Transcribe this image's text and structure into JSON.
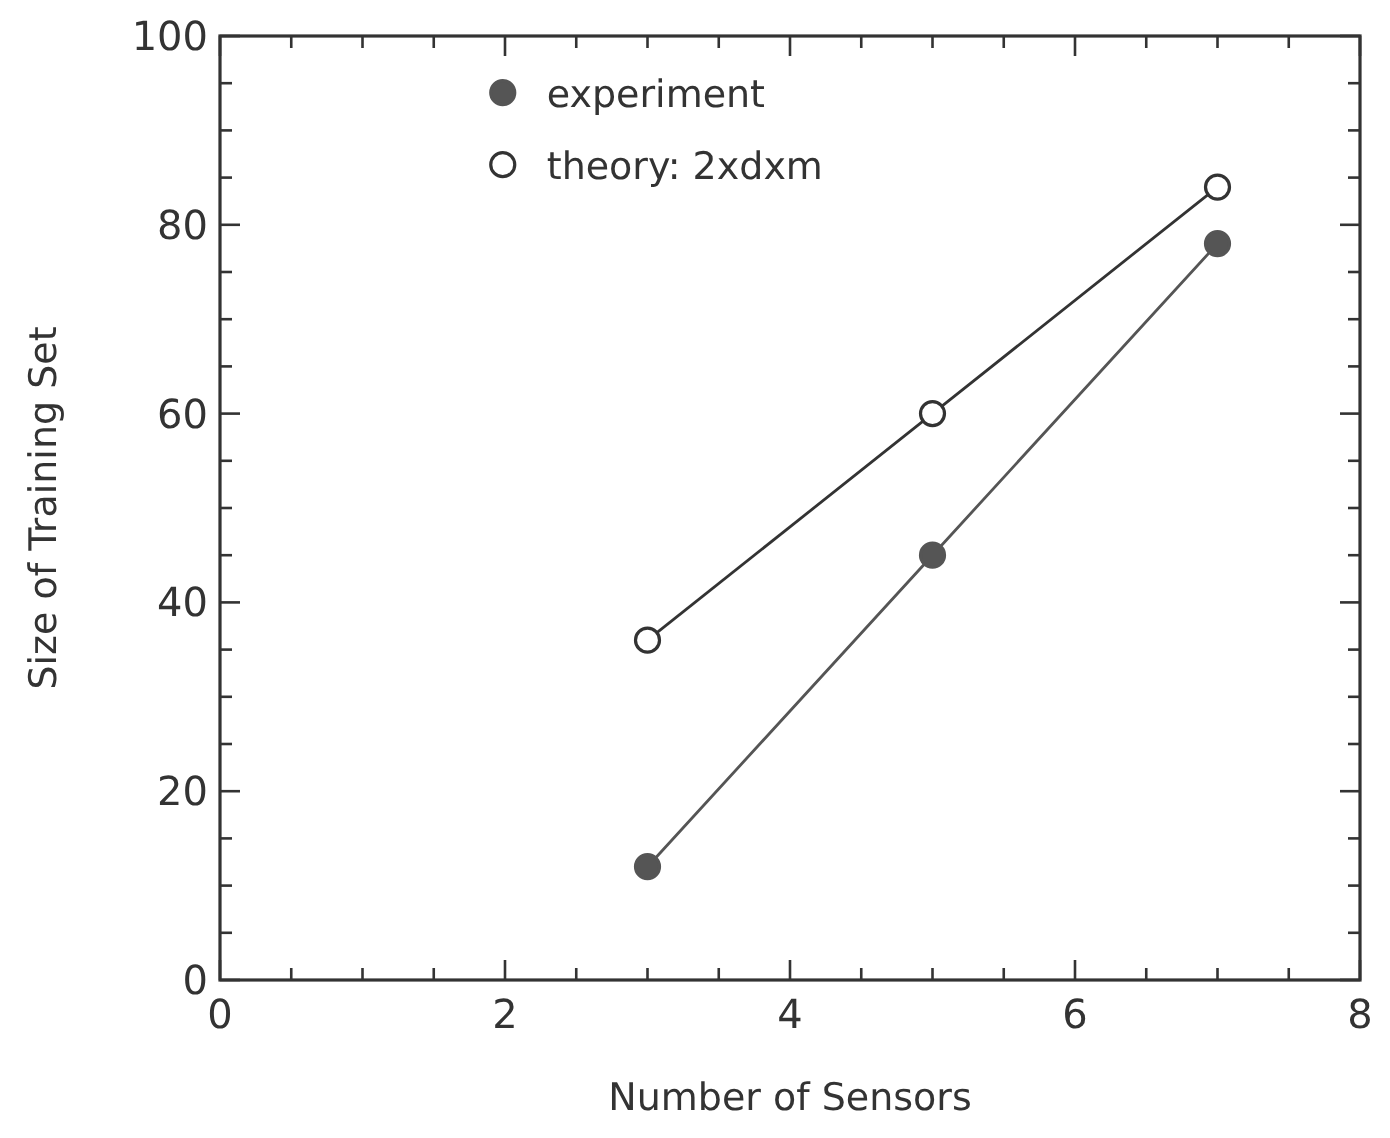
{
  "chart_data": {
    "type": "line",
    "xlabel": "Number of Sensors",
    "ylabel": "Size of Training Set",
    "xlim": [
      0,
      8
    ],
    "ylim": [
      0,
      100
    ],
    "xticks": [
      0,
      {
        "value": 0.5,
        "label": null
      },
      {
        "value": 1,
        "label": null
      },
      {
        "value": 1.5,
        "label": null
      },
      2,
      {
        "value": 2.5,
        "label": null
      },
      {
        "value": 3,
        "label": null
      },
      {
        "value": 3.5,
        "label": null
      },
      4,
      {
        "value": 4.5,
        "label": null
      },
      {
        "value": 5,
        "label": null
      },
      {
        "value": 5.5,
        "label": null
      },
      6,
      {
        "value": 6.5,
        "label": null
      },
      {
        "value": 7,
        "label": null
      },
      {
        "value": 7.5,
        "label": null
      },
      8
    ],
    "yticks": [
      0,
      {
        "value": 5,
        "label": null
      },
      {
        "value": 10,
        "label": null
      },
      {
        "value": 15,
        "label": null
      },
      20,
      {
        "value": 25,
        "label": null
      },
      {
        "value": 30,
        "label": null
      },
      {
        "value": 35,
        "label": null
      },
      40,
      {
        "value": 45,
        "label": null
      },
      {
        "value": 50,
        "label": null
      },
      {
        "value": 55,
        "label": null
      },
      60,
      {
        "value": 65,
        "label": null
      },
      {
        "value": 70,
        "label": null
      },
      {
        "value": 75,
        "label": null
      },
      80,
      {
        "value": 85,
        "label": null
      },
      {
        "value": 90,
        "label": null
      },
      {
        "value": 95,
        "label": null
      },
      100
    ],
    "x": [
      3,
      5,
      7
    ],
    "marker": "circle",
    "legend": "top left",
    "grid": false,
    "series": [
      {
        "name": "experiment",
        "color": "#555555",
        "values": [
          12,
          45,
          78
        ]
      },
      {
        "name": "theory: 2xdxm",
        "color": "#333333",
        "values": [
          36,
          60,
          84
        ]
      }
    ]
  }
}
